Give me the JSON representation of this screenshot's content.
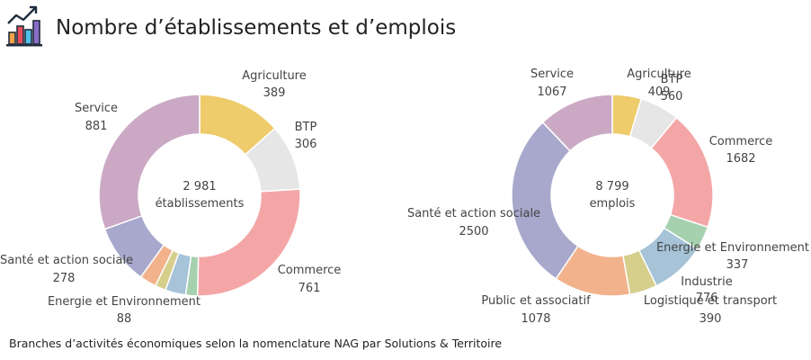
{
  "header": {
    "title": "Nombre d’établissements et d’emplois",
    "icon": "bar-chart-trend-icon"
  },
  "footer": {
    "note": "Branches d’activités économiques selon la nomenclature NAG par Solutions & Territoire"
  },
  "chart_data": [
    {
      "type": "pie",
      "variant": "donut",
      "center_value": "2 981",
      "center_label": "établissements",
      "slices": [
        {
          "label": "Agriculture",
          "display_value": "389",
          "value": 389,
          "color": "#EECB6B"
        },
        {
          "label": "BTP",
          "display_value": "306",
          "value": 306,
          "color": "#E6E6E6"
        },
        {
          "label": "Commerce",
          "display_value": "761",
          "value": 761,
          "color": "#F4A6A7"
        },
        {
          "label": "",
          "display_value": "",
          "value": 55,
          "color": "#A6D1AE"
        },
        {
          "label": "",
          "display_value": "",
          "value": 95,
          "color": "#A6C3D7"
        },
        {
          "label": "",
          "display_value": "",
          "value": 50,
          "color": "#D6CF8C"
        },
        {
          "label": "",
          "display_value": "",
          "value": 78,
          "color": "#F2B28C"
        },
        {
          "label": "Santé et action sociale",
          "display_value": "278",
          "value": 278,
          "color": "#A8A7CC"
        },
        {
          "label": "Service",
          "display_value": "881",
          "value": 881,
          "color": "#CBA9C5"
        }
      ],
      "callout": {
        "label": "Energie et Environnement",
        "display_value": "88"
      }
    },
    {
      "type": "pie",
      "variant": "donut",
      "center_value": "8 799",
      "center_label": "emplois",
      "slices": [
        {
          "label": "Agriculture",
          "display_value": "409",
          "value": 409,
          "color": "#EECB6B"
        },
        {
          "label": "BTP",
          "display_value": "560",
          "value": 560,
          "color": "#E6E6E6"
        },
        {
          "label": "Commerce",
          "display_value": "1682",
          "value": 1682,
          "color": "#F4A6A7"
        },
        {
          "label": "Energie et Environnement",
          "display_value": "337",
          "value": 337,
          "color": "#A6D1AE"
        },
        {
          "label": "Industrie",
          "display_value": "776",
          "value": 776,
          "color": "#A6C3D7"
        },
        {
          "label": "Logistique et transport",
          "display_value": "390",
          "value": 390,
          "color": "#D6CF8C"
        },
        {
          "label": "Public et associatif",
          "display_value": "1078",
          "value": 1078,
          "color": "#F2B28C"
        },
        {
          "label": "Santé et action sociale",
          "display_value": "2500",
          "value": 2500,
          "color": "#A8A7CC"
        },
        {
          "label": "Service",
          "display_value": "1067",
          "value": 1067,
          "color": "#CBA9C5"
        }
      ]
    }
  ]
}
